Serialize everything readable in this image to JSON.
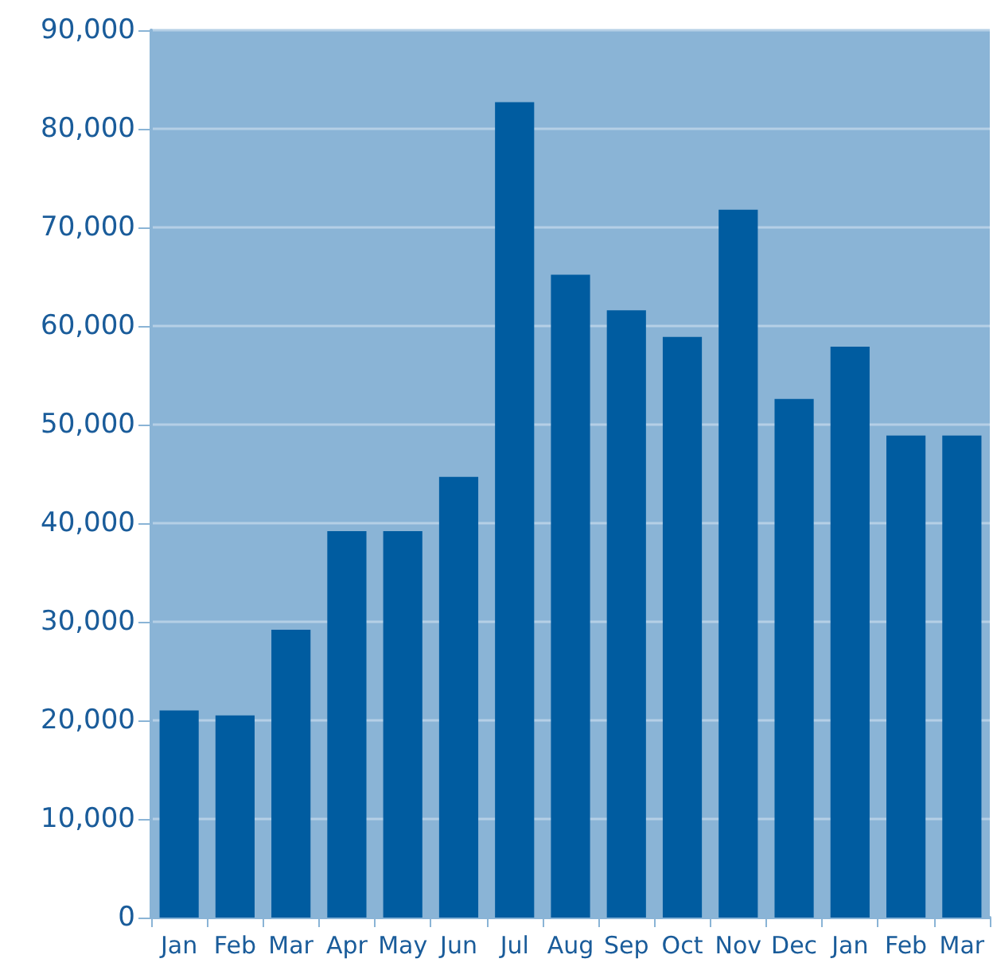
{
  "chart_data": {
    "type": "bar",
    "categories": [
      "Jan",
      "Feb",
      "Mar",
      "Apr",
      "May",
      "Jun",
      "Jul",
      "Aug",
      "Sep",
      "Oct",
      "Nov",
      "Dec",
      "Jan",
      "Feb",
      "Mar"
    ],
    "values": [
      21000,
      20500,
      29200,
      39200,
      39200,
      44700,
      82700,
      65200,
      61600,
      58900,
      71800,
      52600,
      57900,
      48900,
      48900
    ],
    "color": "#005ca0",
    "ylim": [
      0,
      90000
    ],
    "yticks": [
      0,
      {
        "value": 10000,
        "label": "10,000"
      },
      {
        "value": 20000,
        "label": "20,000"
      },
      {
        "value": 30000,
        "label": "30,000"
      },
      {
        "value": 40000,
        "label": "40,000"
      },
      {
        "value": 50000,
        "label": "50,000"
      },
      {
        "value": 60000,
        "label": "60,000"
      },
      {
        "value": 70000,
        "label": "70,000"
      },
      {
        "value": 80000,
        "label": "80,000"
      },
      {
        "value": 90000,
        "label": "90,000"
      }
    ],
    "grid": "y"
  }
}
